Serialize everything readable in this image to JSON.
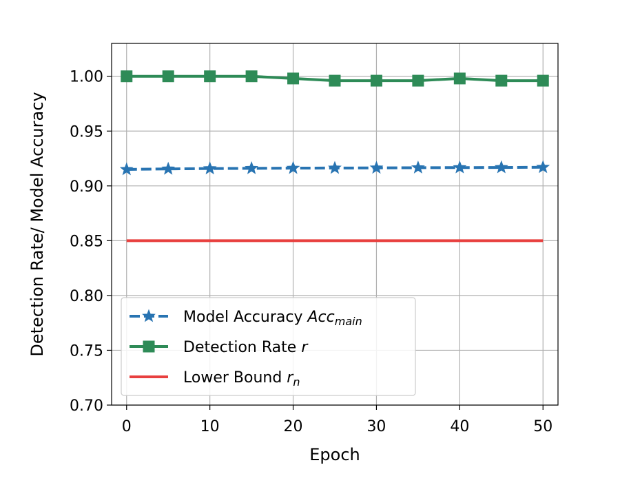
{
  "chart_data": {
    "type": "line",
    "title": "",
    "xlabel": "Epoch",
    "ylabel": "Detection Rate/ Model Accuracy",
    "xlim": [
      -1.8,
      51.8
    ],
    "ylim": [
      0.7,
      1.03
    ],
    "xticks": [
      0,
      10,
      20,
      30,
      40,
      50
    ],
    "xtick_labels": [
      "0",
      "10",
      "20",
      "30",
      "40",
      "50"
    ],
    "yticks": [
      0.7,
      0.75,
      0.8,
      0.85,
      0.9,
      0.95,
      1.0
    ],
    "ytick_labels": [
      "0.70",
      "0.75",
      "0.80",
      "0.85",
      "0.90",
      "0.95",
      "1.00"
    ],
    "grid": true,
    "legend_position": "lower-left",
    "series": [
      {
        "name": "Model Accuracy Acc_main",
        "legend_base": "Model Accuracy ",
        "legend_italic": "Acc",
        "legend_sub": "main",
        "color": "#2874b2",
        "style": "dashed",
        "marker": "star",
        "x": [
          0,
          5,
          10,
          15,
          20,
          25,
          30,
          35,
          40,
          45,
          50
        ],
        "y": [
          0.915,
          0.9155,
          0.9158,
          0.916,
          0.9162,
          0.9163,
          0.9164,
          0.9166,
          0.9167,
          0.9168,
          0.917
        ]
      },
      {
        "name": "Detection Rate r",
        "legend_base": "Detection Rate ",
        "legend_italic": "r",
        "legend_sub": "",
        "color": "#2e8b57",
        "style": "solid",
        "marker": "square",
        "x": [
          0,
          5,
          10,
          15,
          20,
          25,
          30,
          35,
          40,
          45,
          50
        ],
        "y": [
          1.0,
          1.0,
          1.0,
          1.0,
          0.998,
          0.996,
          0.996,
          0.996,
          0.998,
          0.996,
          0.996
        ]
      },
      {
        "name": "Lower Bound r_n",
        "legend_base": "Lower Bound ",
        "legend_italic": "r",
        "legend_sub": "n",
        "color": "#e8403f",
        "style": "solid",
        "marker": "none",
        "x": [
          0,
          50
        ],
        "y": [
          0.85,
          0.85
        ]
      }
    ]
  }
}
